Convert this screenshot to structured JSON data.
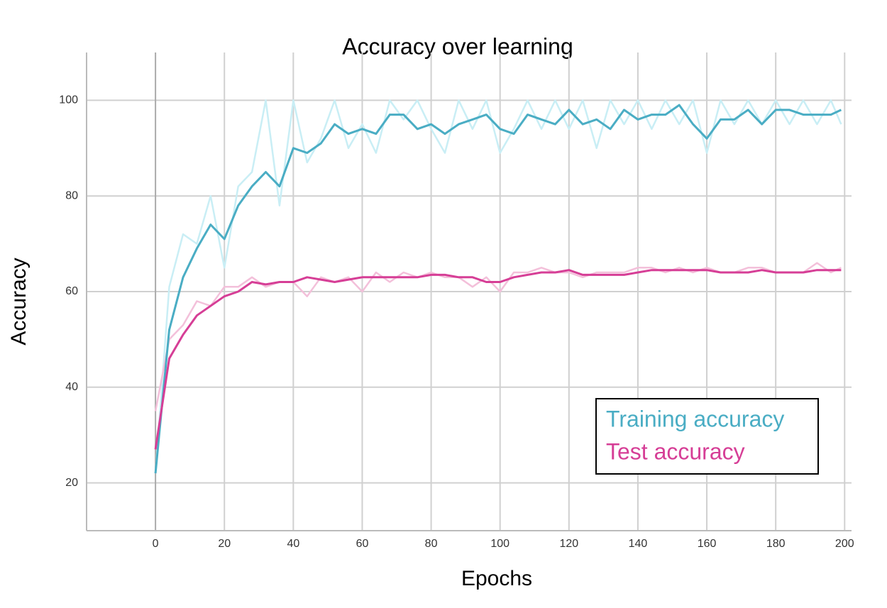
{
  "chart_data": {
    "type": "line",
    "title": "Accuracy over learning",
    "x_label": "Epochs",
    "y_label": "Accuracy",
    "xlim": [
      -20,
      202
    ],
    "ylim": [
      10,
      110
    ],
    "xticks": [
      0,
      20,
      40,
      60,
      80,
      100,
      120,
      140,
      160,
      180,
      200
    ],
    "yticks": [
      20,
      40,
      60,
      80,
      100
    ],
    "grid": true,
    "legend": "lower right",
    "x": [
      0,
      4,
      8,
      12,
      16,
      20,
      24,
      28,
      32,
      36,
      40,
      44,
      48,
      52,
      56,
      60,
      64,
      68,
      72,
      76,
      80,
      84,
      88,
      92,
      96,
      100,
      104,
      108,
      112,
      116,
      120,
      124,
      128,
      132,
      136,
      140,
      144,
      148,
      152,
      156,
      160,
      164,
      168,
      172,
      176,
      180,
      184,
      188,
      192,
      196,
      199
    ],
    "series": [
      {
        "color": "#c9eef5",
        "values": [
          22,
          61,
          72,
          70,
          80,
          65,
          82,
          85,
          100,
          78,
          100,
          87,
          92,
          100,
          90,
          95,
          89,
          100,
          96,
          100,
          94,
          89,
          100,
          94,
          100,
          89,
          94,
          100,
          94,
          100,
          94,
          100,
          90,
          100,
          95,
          100,
          94,
          100,
          95,
          100,
          89,
          100,
          95,
          100,
          95,
          100,
          95,
          100,
          95,
          100,
          95
        ]
      },
      {
        "color": "#f3c0da",
        "values": [
          35,
          50,
          53,
          58,
          57,
          61,
          61,
          63,
          61,
          62,
          62,
          59,
          63,
          62,
          63,
          60,
          64,
          62,
          64,
          63,
          64,
          63,
          63,
          61,
          63,
          60,
          64,
          64,
          65,
          64,
          64,
          63,
          64,
          64,
          64,
          65,
          65,
          64,
          65,
          64,
          65,
          64,
          64,
          65,
          65,
          64,
          64,
          64,
          66,
          64,
          65
        ]
      },
      {
        "name": "Training accuracy",
        "color": "#4aadc4",
        "values": [
          22,
          52,
          63,
          69,
          74,
          71,
          78,
          82,
          85,
          82,
          90,
          89,
          91,
          95,
          93,
          94,
          93,
          97,
          97,
          94,
          95,
          93,
          95,
          96,
          97,
          94,
          93,
          97,
          96,
          95,
          98,
          95,
          96,
          94,
          98,
          96,
          97,
          97,
          99,
          95,
          92,
          96,
          96,
          98,
          95,
          98,
          98,
          97,
          97,
          97,
          98
        ]
      },
      {
        "name": "Test accuracy",
        "color": "#d63e96",
        "values": [
          27,
          46,
          51,
          55,
          57,
          59,
          60,
          62,
          61.5,
          62,
          62,
          63,
          62.5,
          62,
          62.5,
          63,
          63,
          63,
          63,
          63,
          63.5,
          63.5,
          63,
          63,
          62,
          62,
          63,
          63.5,
          64,
          64,
          64.5,
          63.5,
          63.5,
          63.5,
          63.5,
          64,
          64.5,
          64.5,
          64.5,
          64.5,
          64.5,
          64,
          64,
          64,
          64.5,
          64,
          64,
          64,
          64.5,
          64.5,
          64.5
        ]
      }
    ]
  }
}
